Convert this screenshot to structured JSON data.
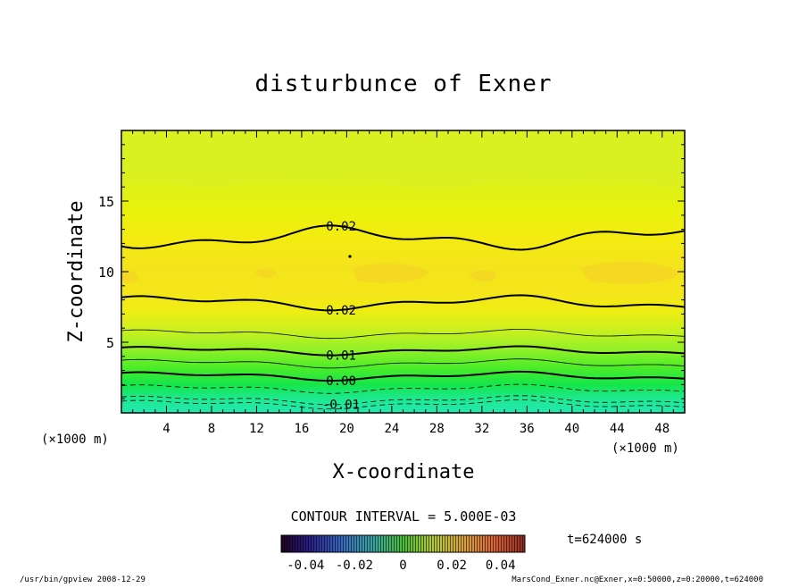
{
  "chart_data": {
    "type": "heatmap",
    "title": "disturbunce of Exner",
    "xlabel": "X-coordinate",
    "ylabel": "Z-coordinate",
    "x_unit_left": "(×1000 m)",
    "x_unit_right": "(×1000 m)",
    "xlim": [
      0,
      50
    ],
    "ylim": [
      0,
      20
    ],
    "x_ticks": [
      4,
      8,
      12,
      16,
      20,
      24,
      28,
      32,
      36,
      40,
      44,
      48
    ],
    "y_ticks": [
      5,
      10,
      15
    ],
    "contour_interval_label": "CONTOUR INTERVAL = 5.000E-03",
    "contours": [
      {
        "level": -0.015,
        "z": 0.6,
        "style": "dashed",
        "label": ""
      },
      {
        "level": -0.01,
        "z": 0.9,
        "style": "dashed",
        "label": "-0.01"
      },
      {
        "level": -0.005,
        "z": 1.7,
        "style": "dashed",
        "label": ""
      },
      {
        "level": 0.0,
        "z": 2.6,
        "style": "bold",
        "label": "0.00"
      },
      {
        "level": 0.005,
        "z": 3.5,
        "style": "thin",
        "label": ""
      },
      {
        "level": 0.01,
        "z": 4.4,
        "style": "bold",
        "label": "0.01"
      },
      {
        "level": 0.015,
        "z": 5.6,
        "style": "thin",
        "label": ""
      },
      {
        "level": 0.02,
        "z": 7.8,
        "style": "bold",
        "label": "0.02"
      },
      {
        "level": 0.02,
        "z": 12.4,
        "style": "bold",
        "label": "0.02"
      }
    ],
    "colorbar": {
      "ticks": [
        -0.04,
        -0.02,
        0,
        0.02,
        0.04
      ],
      "tick_labels": [
        "-0.04",
        "-0.02",
        "0",
        "0.02",
        "0.04"
      ],
      "range": [
        -0.05,
        0.05
      ]
    },
    "time_label": "t=624000 s"
  },
  "footer": {
    "left": "/usr/bin/gpview   2008-12-29",
    "right": "MarsCond_Exner.nc@Exner,x=0:50000,z=0:20000,t=624000"
  }
}
